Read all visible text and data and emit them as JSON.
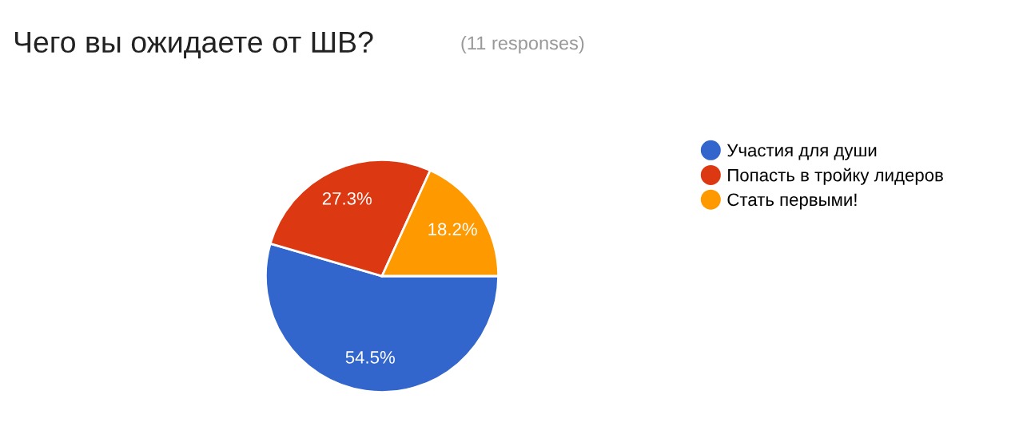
{
  "chart_data": {
    "type": "pie",
    "title": "Чего вы ожидаете от ШВ?",
    "subtitle": "(11 responses)",
    "categories": [
      "Участия для души",
      "Попасть в тройку лидеров",
      "Стать первыми!"
    ],
    "values": [
      54.5,
      27.3,
      18.2
    ],
    "colors": [
      "#3366cc",
      "#dc3912",
      "#ff9900"
    ],
    "value_labels": [
      "54.5%",
      "27.3%",
      "18.2%"
    ],
    "legend": "right"
  }
}
